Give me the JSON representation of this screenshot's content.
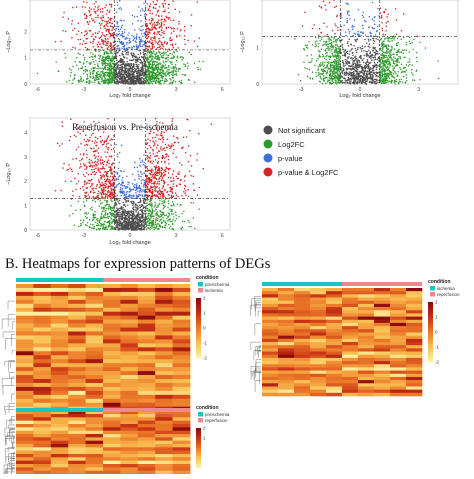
{
  "section_b_title": "B. Heatmaps for expression patterns of DEGs",
  "chart_data": [
    {
      "type": "scatter",
      "id": "volcano-top-left",
      "title": "",
      "xlabel": "Log₂ fold change",
      "ylabel": "−Log₁₀ P",
      "x_ticks": [
        "-6",
        "-3",
        "0",
        "3",
        "6"
      ],
      "y_ticks": [
        "0",
        "1",
        "2"
      ],
      "xlim": [
        -6.5,
        6.5
      ],
      "ylim": [
        0,
        3.2
      ],
      "fc_cutoff": 1,
      "p_cutoff": 1.3,
      "series": [
        {
          "name": "Not significant",
          "color": "#4d4d4d",
          "count": 700
        },
        {
          "name": "Log2FC",
          "color": "#2e9a2e",
          "count": 950
        },
        {
          "name": "p-value",
          "color": "#3f6fd8",
          "count": 180
        },
        {
          "name": "p-value & Log2FC",
          "color": "#d62222",
          "count": 480
        }
      ]
    },
    {
      "type": "scatter",
      "id": "volcano-top-right",
      "title": "",
      "xlabel": "Log₂ fold change",
      "ylabel": "−Log₁₀ P",
      "x_ticks": [
        "-3",
        "0",
        "3"
      ],
      "y_ticks": [
        "0",
        "1"
      ],
      "xlim": [
        -5,
        5
      ],
      "ylim": [
        0,
        2.3
      ],
      "fc_cutoff": 1,
      "p_cutoff": 1.3,
      "series": [
        {
          "name": "Not significant",
          "color": "#4d4d4d",
          "count": 600
        },
        {
          "name": "Log2FC",
          "color": "#2e9a2e",
          "count": 850
        },
        {
          "name": "p-value",
          "color": "#3f6fd8",
          "count": 80
        },
        {
          "name": "p-value & Log2FC",
          "color": "#d62222",
          "count": 60
        }
      ]
    },
    {
      "type": "scatter",
      "id": "volcano-reperfusion",
      "title": "Reperfusion vs. Pre-ischemia",
      "xlabel": "Log₂ fold change",
      "ylabel": "−Log₁₀ P",
      "x_ticks": [
        "-6",
        "-3",
        "0",
        "3",
        "6"
      ],
      "y_ticks": [
        "0",
        "1",
        "2",
        "3",
        "4"
      ],
      "xlim": [
        -6.5,
        6.5
      ],
      "ylim": [
        0,
        4.6
      ],
      "fc_cutoff": 1,
      "p_cutoff": 1.3,
      "series": [
        {
          "name": "Not significant",
          "color": "#4d4d4d",
          "count": 650
        },
        {
          "name": "Log2FC",
          "color": "#2e9a2e",
          "count": 500
        },
        {
          "name": "p-value",
          "color": "#3f6fd8",
          "count": 200
        },
        {
          "name": "p-value & Log2FC",
          "color": "#d62222",
          "count": 900
        }
      ]
    },
    {
      "type": "heatmap",
      "id": "heatmap-1",
      "legend_title": "condition",
      "conditions": [
        {
          "name": "preischemia",
          "color": "#19c4c4"
        },
        {
          "name": "ischemia",
          "color": "#f08a8a"
        }
      ],
      "scale_ticks": [
        "2",
        "1",
        "0",
        "-1",
        "-2"
      ],
      "columns": 10,
      "rows": 48
    },
    {
      "type": "heatmap",
      "id": "heatmap-2",
      "legend_title": "condition",
      "conditions": [
        {
          "name": "ischemia",
          "color": "#19c4c4"
        },
        {
          "name": "reperfusion",
          "color": "#f08a8a"
        }
      ],
      "scale_ticks": [
        "2",
        "1",
        "0",
        "-1",
        "-2"
      ],
      "columns": 10,
      "rows": 34
    },
    {
      "type": "heatmap",
      "id": "heatmap-3",
      "legend_title": "condition",
      "conditions": [
        {
          "name": "preischemia",
          "color": "#19c4c4"
        },
        {
          "name": "reperfusion",
          "color": "#f08a8a"
        }
      ],
      "scale_ticks": [
        "2",
        "1"
      ],
      "columns": 10,
      "rows": 18
    }
  ],
  "legend": {
    "items": [
      {
        "label": "Not significant",
        "color": "#4d4d4d"
      },
      {
        "label": "Log2FC",
        "color": "#2e9a2e"
      },
      {
        "label": "p-value",
        "color": "#3f6fd8"
      },
      {
        "label": "p-value & Log2FC",
        "color": "#d62222"
      }
    ]
  }
}
